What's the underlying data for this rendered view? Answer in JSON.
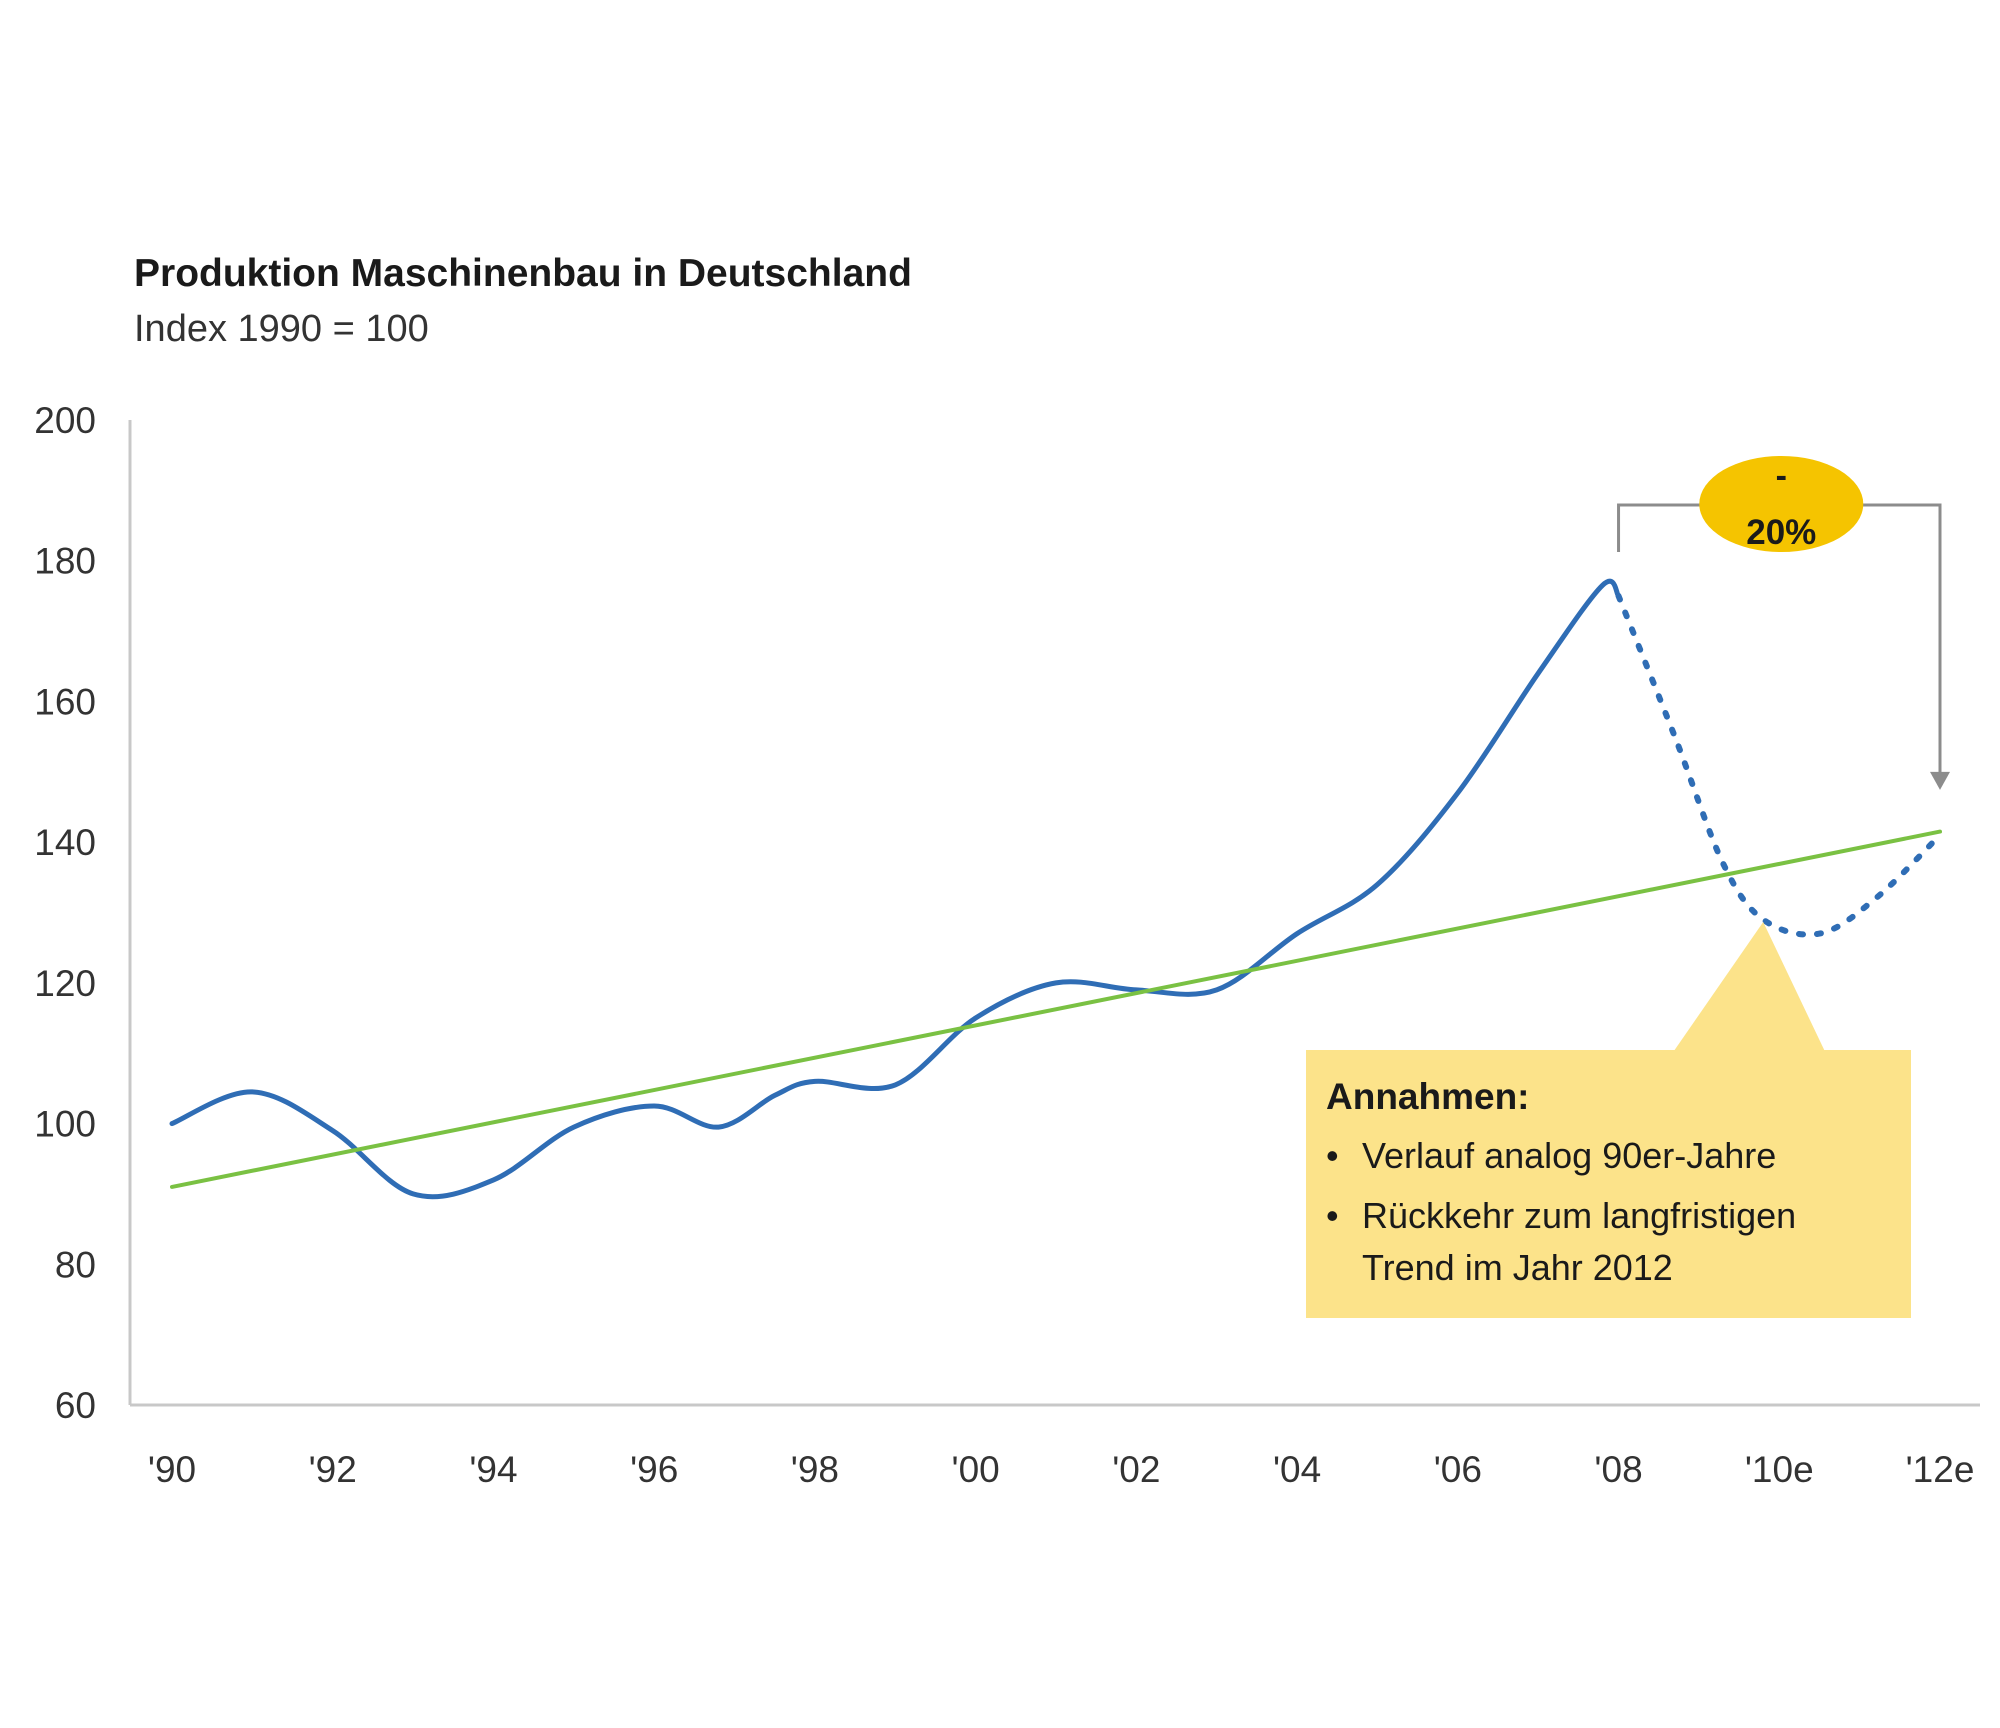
{
  "chart_data": {
    "type": "line",
    "title": "Produktion Maschinenbau in Deutschland",
    "subtitle": "Index 1990 = 100",
    "xlabel": "",
    "ylabel": "",
    "ylim": [
      60,
      200
    ],
    "yticks": [
      60,
      80,
      100,
      120,
      140,
      160,
      180,
      200
    ],
    "xticks": [
      {
        "value": 1990,
        "label": "'90"
      },
      {
        "value": 1992,
        "label": "'92"
      },
      {
        "value": 1994,
        "label": "'94"
      },
      {
        "value": 1996,
        "label": "'96"
      },
      {
        "value": 1998,
        "label": "'98"
      },
      {
        "value": 2000,
        "label": "'00"
      },
      {
        "value": 2002,
        "label": "'02"
      },
      {
        "value": 2004,
        "label": "'04"
      },
      {
        "value": 2006,
        "label": "'06"
      },
      {
        "value": 2008,
        "label": "'08"
      },
      {
        "value": 2010,
        "label": "'10e"
      },
      {
        "value": 2012,
        "label": "'12e"
      }
    ],
    "xlim": [
      1990,
      2012
    ],
    "grid": false,
    "series": [
      {
        "style": "solid",
        "color": "#2f6db5",
        "x": [
          1990,
          1991,
          1992,
          1993,
          1994,
          1995,
          1996,
          1996.8,
          1997.5,
          1998,
          1999,
          2000,
          2001,
          2002,
          2003,
          2004,
          2005,
          2006,
          2007,
          2007.8,
          2008
        ],
        "y": [
          100,
          104.5,
          99,
          90,
          92,
          99.5,
          102.5,
          99.5,
          104,
          106,
          105.5,
          115,
          120,
          119,
          119,
          127,
          134,
          147,
          164,
          176.5,
          175
        ]
      },
      {
        "style": "dashed",
        "color": "#2f6db5",
        "x": [
          2008,
          2008.7,
          2009.3,
          2009.8,
          2010.5,
          2011.2,
          2012
        ],
        "y": [
          175,
          155,
          137,
          129,
          127,
          132,
          141
        ]
      },
      {
        "style": "solid",
        "color": "#7ac143",
        "x": [
          1990,
          2012
        ],
        "y": [
          91,
          141.5
        ]
      }
    ],
    "annotations": {
      "change_badge": {
        "line1": "-",
        "line2": "20%",
        "color": "#f5c400",
        "from_x": 2008,
        "to_x": 2012,
        "arrow_to_y": 148
      },
      "callout": {
        "color": "#fce38a",
        "title": "Annahmen:",
        "items": [
          "Verlauf analog 90er-Jahre",
          "Rückkehr zum langfristigen Trend im Jahr 2012"
        ]
      }
    }
  }
}
